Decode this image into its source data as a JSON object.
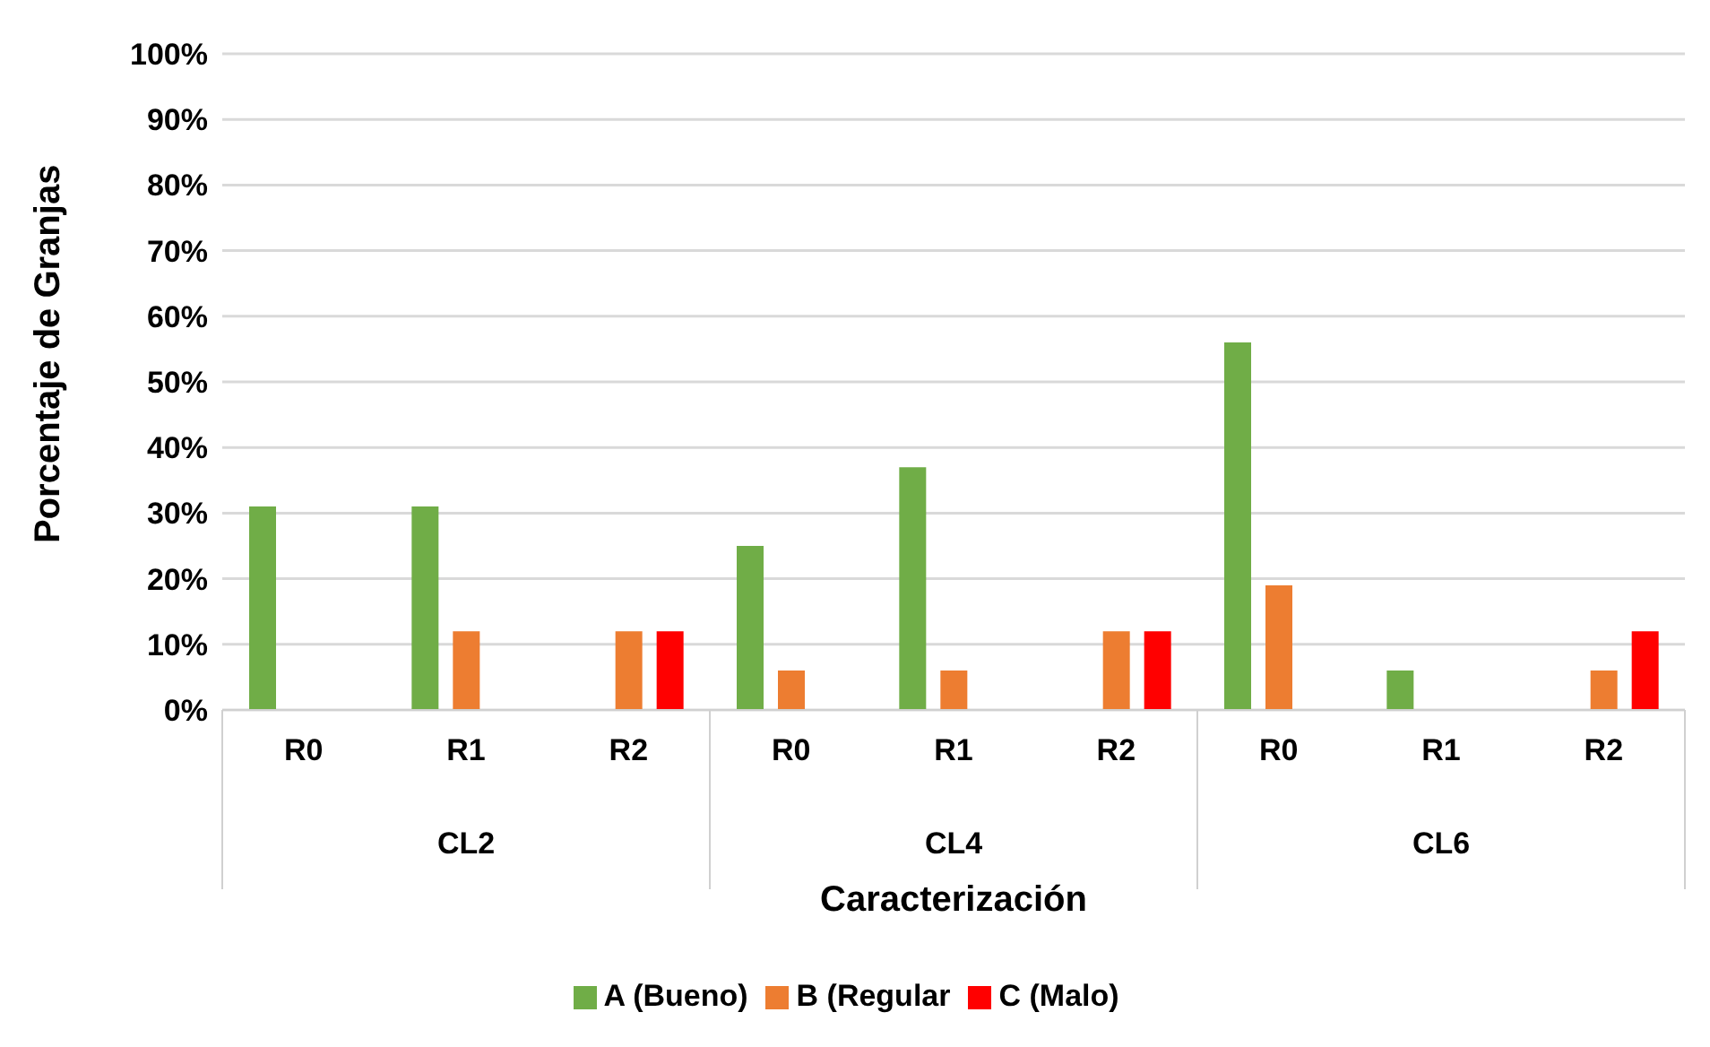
{
  "chart_data": {
    "type": "bar",
    "ylabel": "Porcentaje de Granjas",
    "xlabel": "Caracterización",
    "categories": [
      "R0",
      "R1",
      "R2",
      "R0",
      "R1",
      "R2",
      "R0",
      "R1",
      "R2"
    ],
    "annotations": [
      "CL2",
      "CL4",
      "CL6"
    ],
    "series": [
      {
        "name": "A (Bueno)",
        "color": "#70ad47",
        "values": [
          31,
          31,
          0,
          25,
          37,
          0,
          56,
          6,
          0
        ]
      },
      {
        "name": "B (Regular",
        "color": "#ed7d31",
        "values": [
          0,
          12,
          12,
          6,
          6,
          12,
          19,
          0,
          6
        ]
      },
      {
        "name": "C (Malo)",
        "color": "#ff0000",
        "values": [
          0,
          0,
          12,
          0,
          0,
          12,
          0,
          0,
          12
        ]
      }
    ],
    "ylim": [
      0,
      100
    ],
    "yticks": [
      {
        "value": 0,
        "label": "0%"
      },
      {
        "value": 10,
        "label": "10%"
      },
      {
        "value": 20,
        "label": "20%"
      },
      {
        "value": 30,
        "label": "30%"
      },
      {
        "value": 40,
        "label": "40%"
      },
      {
        "value": 50,
        "label": "50%"
      },
      {
        "value": 60,
        "label": "60%"
      },
      {
        "value": 70,
        "label": "70%"
      },
      {
        "value": 80,
        "label": "80%"
      },
      {
        "value": 90,
        "label": "90%"
      },
      {
        "value": 100,
        "label": "100%"
      }
    ],
    "grid": "y",
    "legend": "bottom"
  }
}
